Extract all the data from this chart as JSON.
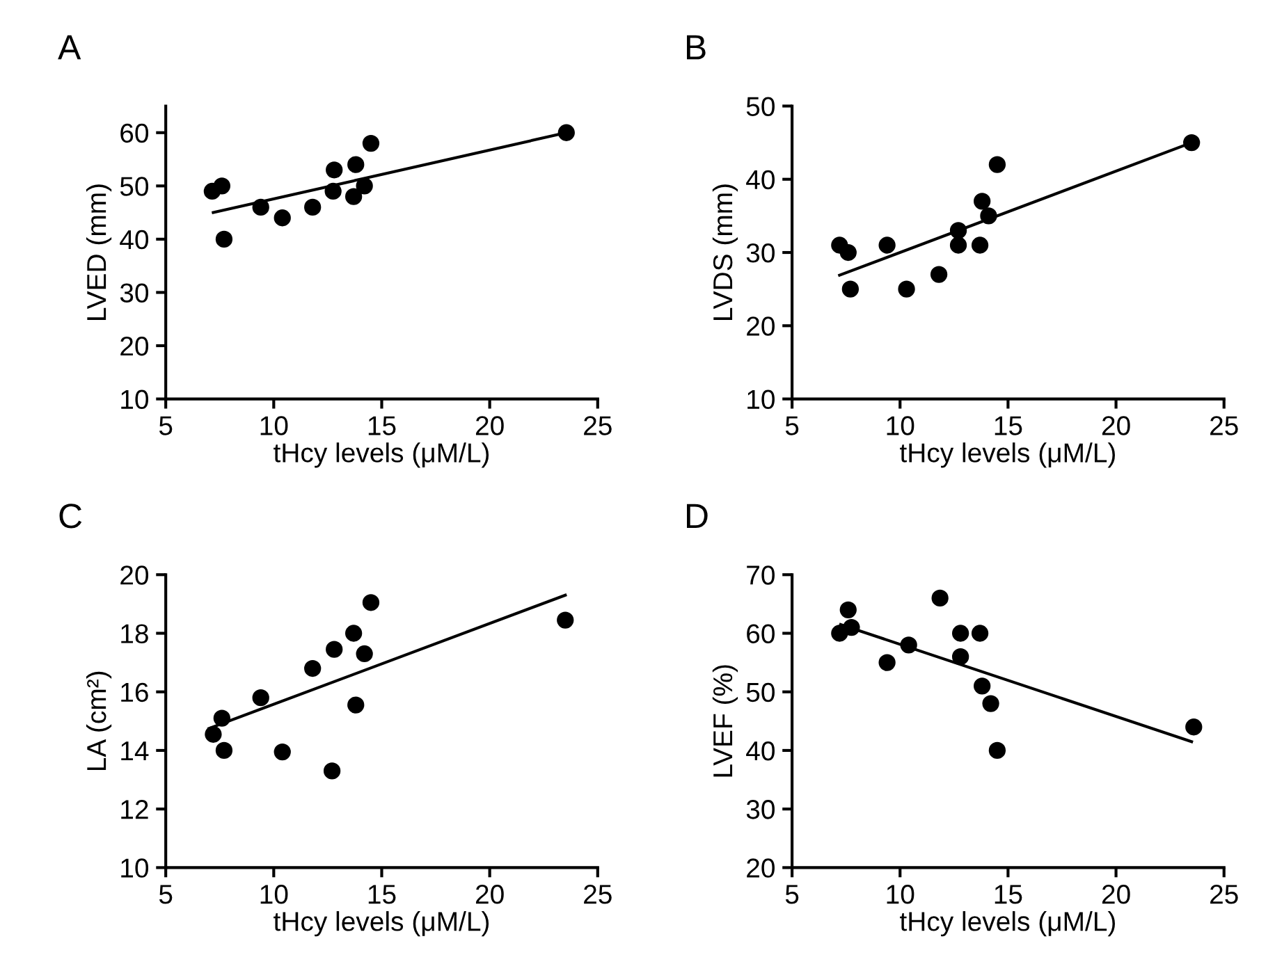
{
  "chart_data": [
    {
      "type": "scatter",
      "title": "A",
      "xlabel": "tHcy levels (μM/L)",
      "ylabel": "LVED (mm)",
      "xlim": [
        5,
        25
      ],
      "xticks": [
        5,
        10,
        15,
        20,
        25
      ],
      "ylim": [
        10,
        65
      ],
      "yticks": [
        10,
        20,
        30,
        40,
        50,
        60
      ],
      "grid": false,
      "legend": false,
      "series": [
        {
          "marker": "circle",
          "color": "#000000",
          "x": [
            7.15,
            7.6,
            7.7,
            9.4,
            10.4,
            11.8,
            12.8,
            12.75,
            13.8,
            13.7,
            14.2,
            14.5,
            23.55
          ],
          "values": [
            49,
            50,
            40,
            46,
            44,
            46,
            53,
            49,
            54,
            48,
            50,
            58,
            60
          ]
        },
        {
          "type": "line",
          "color": "#000000",
          "x": [
            7.2,
            23.55
          ],
          "values": [
            45,
            60
          ]
        }
      ]
    },
    {
      "type": "scatter",
      "title": "B",
      "xlabel": "tHcy levels (μM/L)",
      "ylabel": "LVDS (mm)",
      "xlim": [
        5,
        25
      ],
      "xticks": [
        5,
        10,
        15,
        20,
        25
      ],
      "ylim": [
        10,
        50
      ],
      "yticks": [
        10,
        20,
        30,
        40,
        50
      ],
      "grid": false,
      "legend": false,
      "series": [
        {
          "marker": "circle",
          "color": "#000000",
          "x": [
            7.2,
            7.6,
            7.7,
            9.4,
            10.3,
            11.8,
            12.7,
            12.7,
            13.8,
            13.7,
            14.1,
            14.5,
            23.5
          ],
          "values": [
            31,
            30,
            25,
            31,
            25,
            27,
            33,
            31,
            37,
            31,
            35,
            42,
            45
          ]
        },
        {
          "type": "line",
          "color": "#000000",
          "x": [
            7.2,
            23.5
          ],
          "values": [
            26.9,
            45
          ]
        }
      ]
    },
    {
      "type": "scatter",
      "title": "C",
      "xlabel": "tHcy levels (μM/L)",
      "ylabel": "LA (cm²)",
      "xlim": [
        5,
        25
      ],
      "xticks": [
        5,
        10,
        15,
        20,
        25
      ],
      "ylim": [
        10,
        20
      ],
      "yticks": [
        10,
        12,
        14,
        16,
        18,
        20
      ],
      "grid": false,
      "legend": false,
      "series": [
        {
          "marker": "circle",
          "color": "#000000",
          "x": [
            7.2,
            7.6,
            7.7,
            9.4,
            10.4,
            11.8,
            12.8,
            12.7,
            13.7,
            13.8,
            14.2,
            14.5,
            23.5
          ],
          "values": [
            14.55,
            15.1,
            14.0,
            15.8,
            13.95,
            16.8,
            17.45,
            13.3,
            18.0,
            15.55,
            17.3,
            19.05,
            18.45
          ]
        },
        {
          "type": "line",
          "color": "#000000",
          "x": [
            7.0,
            23.5
          ],
          "values": [
            14.75,
            19.3
          ]
        }
      ]
    },
    {
      "type": "scatter",
      "title": "D",
      "xlabel": "tHcy levels (μM/L)",
      "ylabel": "LVEF (%)",
      "xlim": [
        5,
        25
      ],
      "xticks": [
        5,
        10,
        15,
        20,
        25
      ],
      "ylim": [
        20,
        70
      ],
      "yticks": [
        20,
        30,
        40,
        50,
        60,
        70
      ],
      "grid": false,
      "legend": false,
      "series": [
        {
          "marker": "circle",
          "color": "#000000",
          "x": [
            7.2,
            7.6,
            7.75,
            9.4,
            10.4,
            11.85,
            12.8,
            12.8,
            13.7,
            13.8,
            14.2,
            14.5,
            23.6
          ],
          "values": [
            60,
            64,
            61,
            55,
            58,
            66,
            60,
            56,
            60,
            51,
            48,
            40,
            44
          ]
        },
        {
          "type": "line",
          "color": "#000000",
          "x": [
            7.25,
            23.5
          ],
          "values": [
            61.5,
            41.5
          ]
        }
      ]
    }
  ]
}
